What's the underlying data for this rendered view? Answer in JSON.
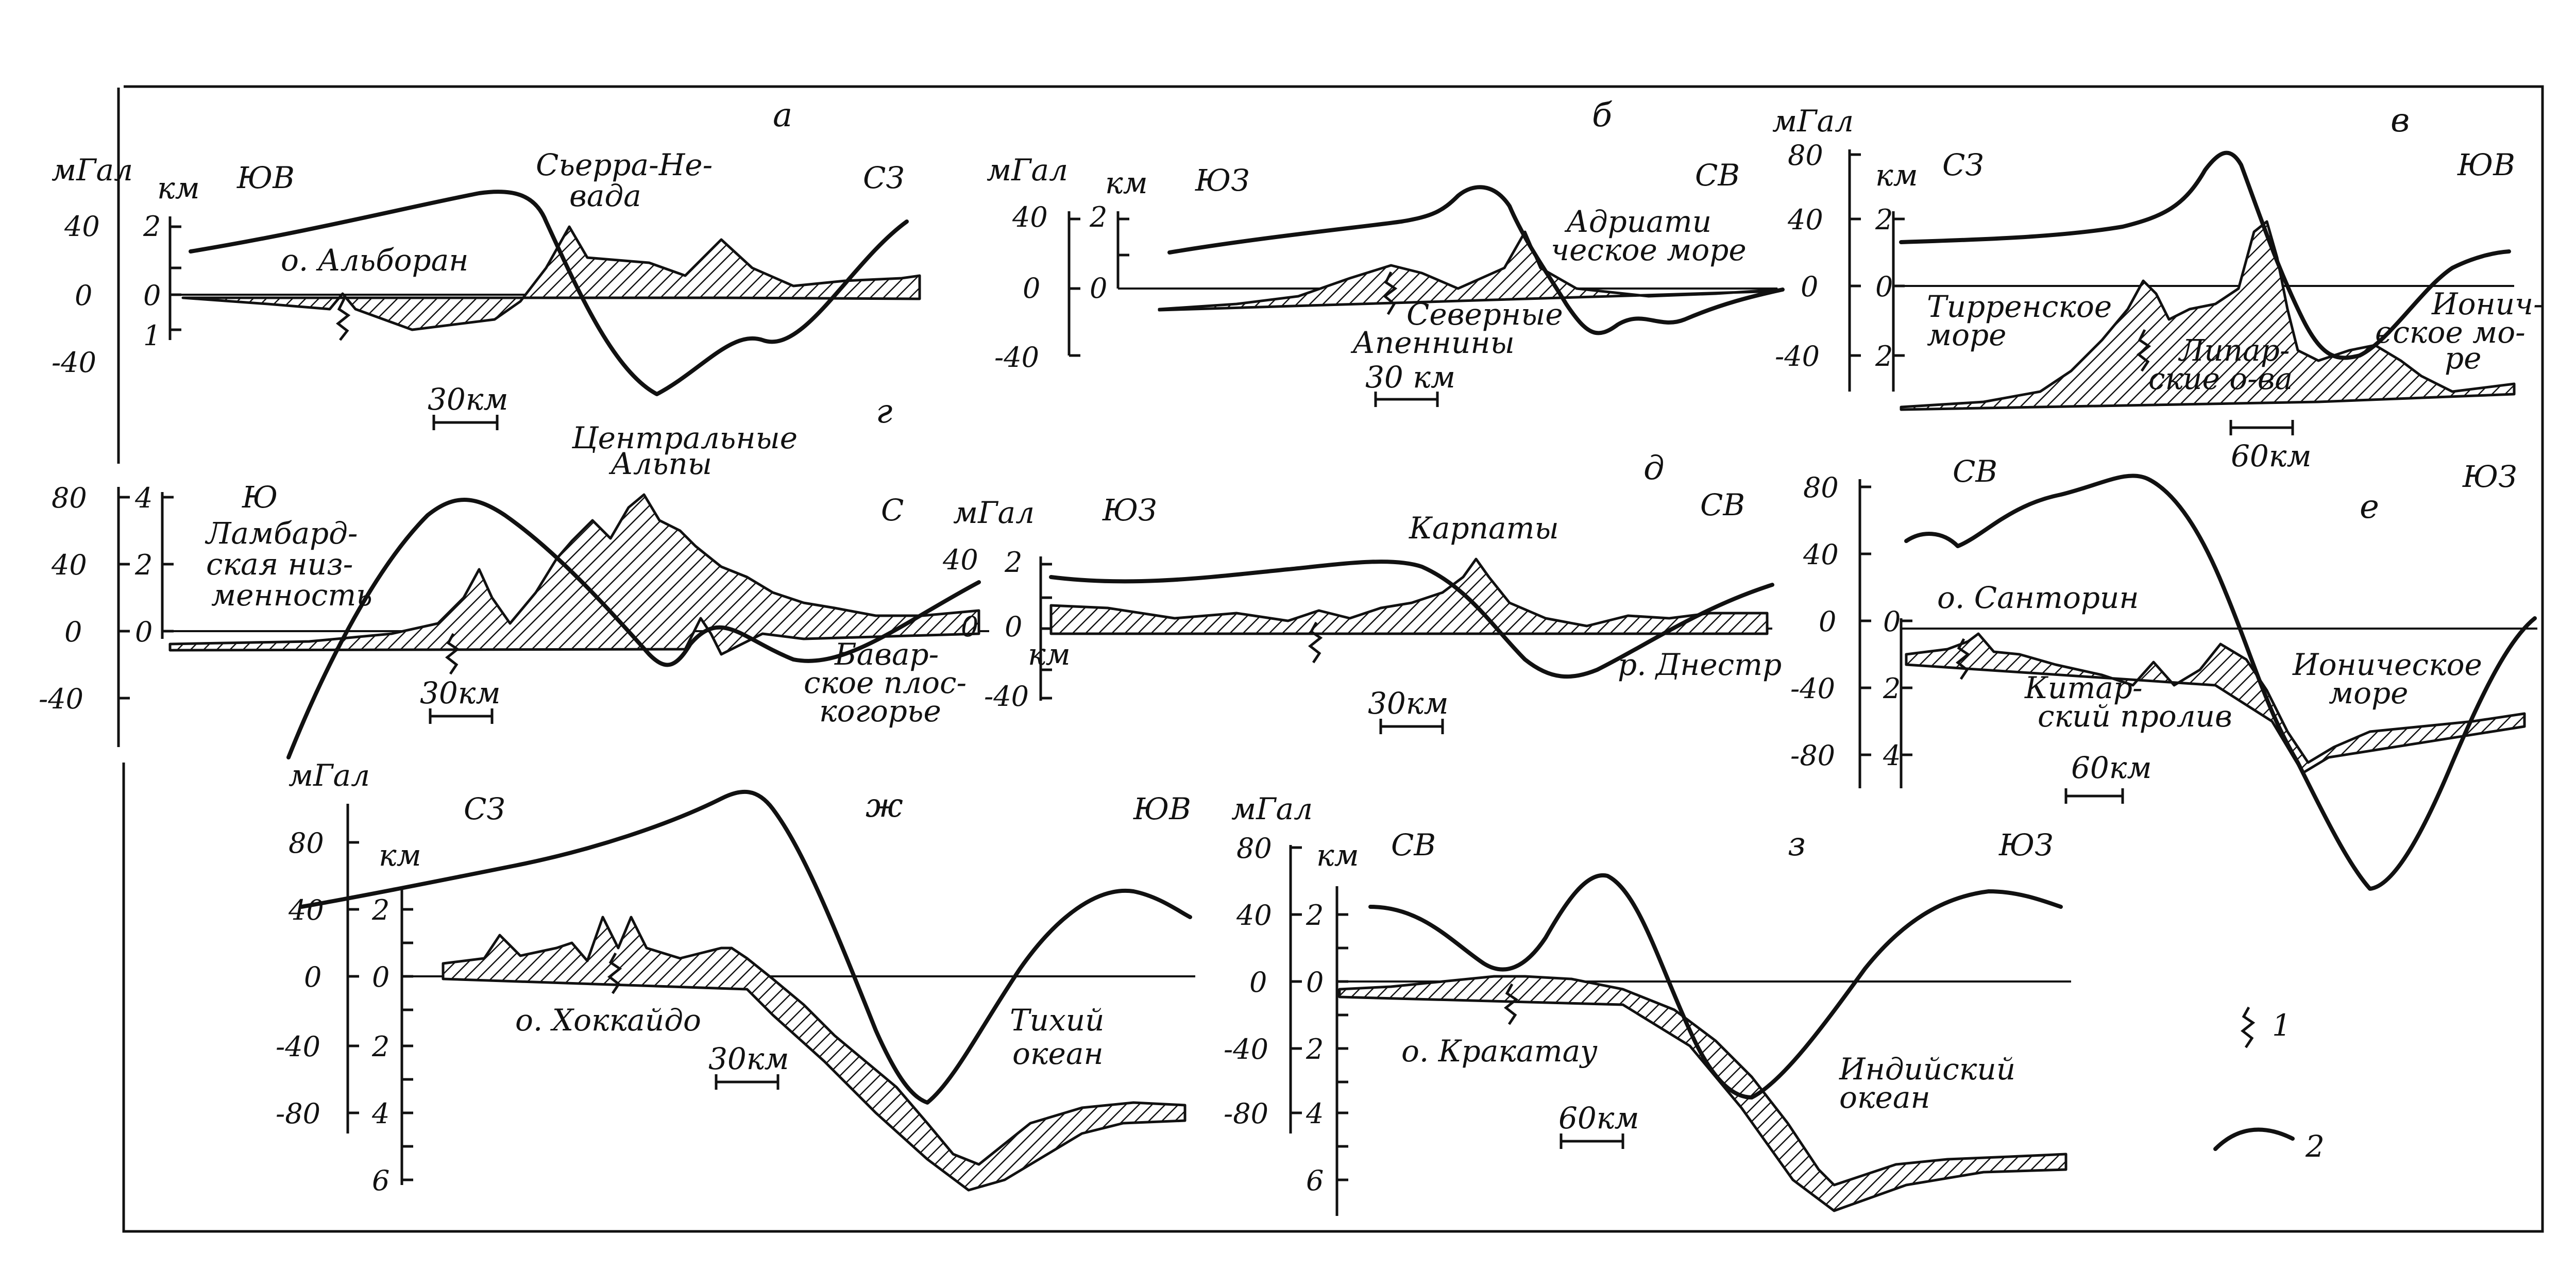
{
  "units": {
    "mgal": "мГал",
    "km": "км"
  },
  "panels": {
    "a": {
      "letter": "а",
      "left_dir": "ЮВ",
      "right_dir": "СЗ",
      "mgal_ticks": [
        "40",
        "0",
        "-40"
      ],
      "km_ticks": [
        "2",
        "0",
        "1"
      ],
      "labels": {
        "range_l1": "Сьерра-Не-",
        "range_l2": "вада",
        "island": "о. Альборан"
      },
      "scale": "30км"
    },
    "b": {
      "letter": "б",
      "left_dir": "ЮЗ",
      "right_dir": "СВ",
      "mgal_ticks": [
        "40",
        "0",
        "-40"
      ],
      "km_ticks": [
        "2",
        "0"
      ],
      "labels": {
        "sea_l1": "Адриати",
        "sea_l2": "ческое море",
        "mtn_l1": "Северные",
        "mtn_l2": "Апеннины"
      },
      "scale": "30 км"
    },
    "v": {
      "letter": "в",
      "left_dir": "СЗ",
      "right_dir": "ЮВ",
      "mgal_ticks": [
        "80",
        "40",
        "0",
        "-40"
      ],
      "km_ticks": [
        "2",
        "0",
        "2"
      ],
      "labels": {
        "sea1_l1": "Тирренское",
        "sea1_l2": "море",
        "isl_l1": "Липар-",
        "isl_l2": "ские о-ва",
        "sea2_l1": "Ионич-",
        "sea2_l2": "еское мо-",
        "sea2_l3": "ре"
      },
      "scale": "60км"
    },
    "g": {
      "letter": "г",
      "left_dir": "Ю",
      "right_dir": "С",
      "mgal_ticks": [
        "80",
        "40",
        "0",
        "-40"
      ],
      "km_ticks": [
        "4",
        "2",
        "0"
      ],
      "labels": {
        "title_l1": "Центральные",
        "title_l2": "Альпы",
        "low_l1": "Ламбард-",
        "low_l2": "ская низ-",
        "low_l3": "менность",
        "plat_l1": "Бавар-",
        "plat_l2": "ское плос-",
        "plat_l3": "когорье"
      },
      "scale": "30км"
    },
    "d": {
      "letter": "д",
      "left_dir": "ЮЗ",
      "right_dir": "СВ",
      "mgal_ticks": [
        "40",
        "0",
        "-40"
      ],
      "km_ticks": [
        "2",
        "0"
      ],
      "labels": {
        "mtn": "Карпаты",
        "river": "р. Днестр"
      },
      "scale": "30км"
    },
    "e": {
      "letter": "е",
      "left_dir": "СВ",
      "right_dir": "ЮЗ",
      "mgal_ticks": [
        "80",
        "40",
        "0",
        "-40",
        "-80"
      ],
      "km_ticks": [
        "0",
        "2",
        "4"
      ],
      "labels": {
        "island": "о. Санторин",
        "strait_l1": "Китар-",
        "strait_l2": "ский пролив",
        "sea_l1": "Ионическое",
        "sea_l2": "море"
      },
      "scale": "60км"
    },
    "zh": {
      "letter": "ж",
      "left_dir": "СЗ",
      "right_dir": "ЮВ",
      "mgal_ticks": [
        "80",
        "40",
        "0",
        "-40",
        "-80"
      ],
      "km_ticks": [
        "2",
        "0",
        "2",
        "4",
        "6"
      ],
      "labels": {
        "island": "о. Хоккайдо",
        "ocean_l1": "Тихий",
        "ocean_l2": "океан"
      },
      "scale": "30км"
    },
    "z": {
      "letter": "з",
      "left_dir": "СВ",
      "right_dir": "ЮЗ",
      "mgal_ticks": [
        "80",
        "40",
        "0",
        "-40",
        "-80"
      ],
      "km_ticks": [
        "2",
        "0",
        "2",
        "4",
        "6"
      ],
      "labels": {
        "island": "о. Кракатау",
        "ocean_l1": "Индийский",
        "ocean_l2": "океан"
      },
      "scale": "60км"
    }
  },
  "legend": {
    "item1": "1",
    "item2": "2"
  }
}
